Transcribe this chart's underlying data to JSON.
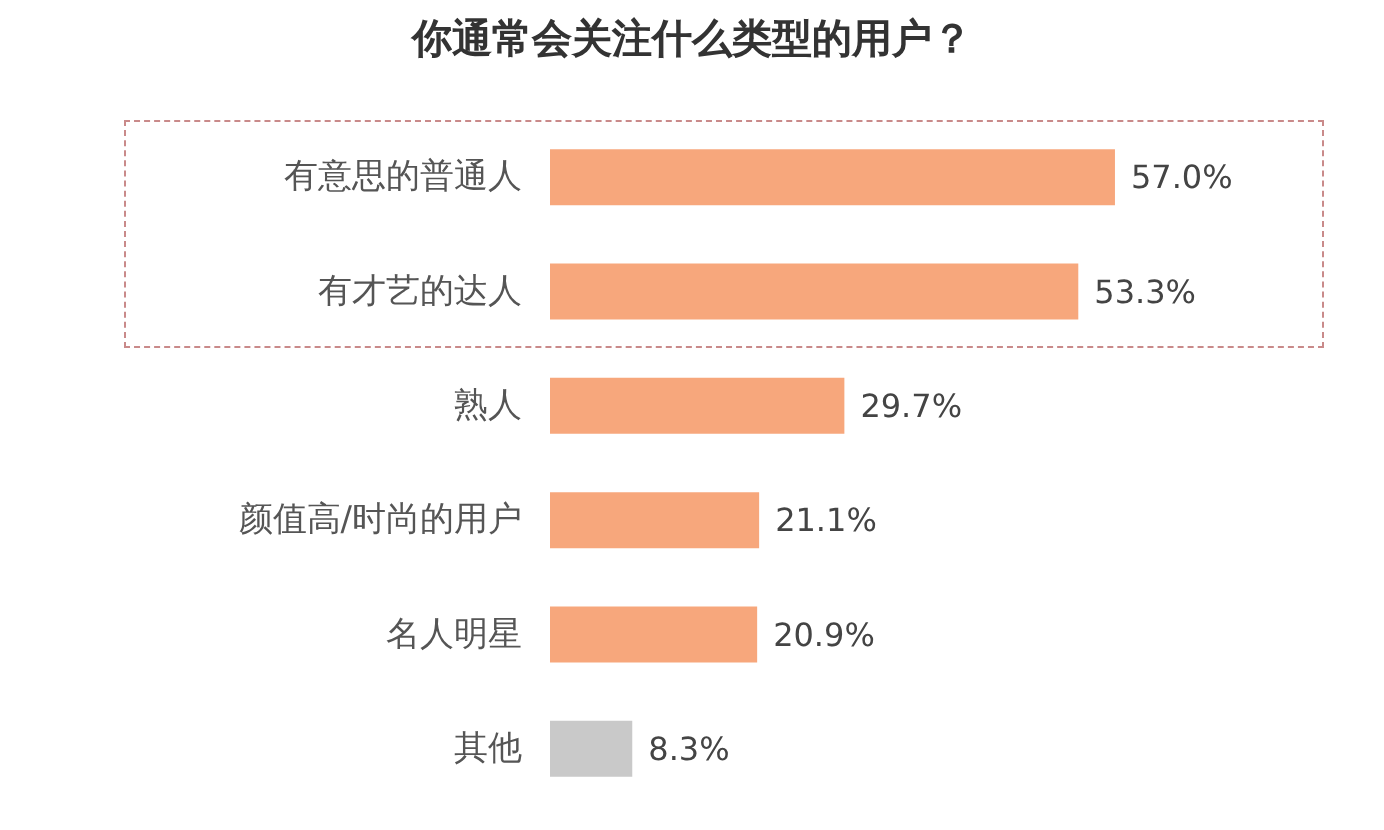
{
  "chart_data": {
    "type": "bar",
    "orientation": "horizontal",
    "title": "你通常会关注什么类型的用户？",
    "categories": [
      "有意思的普通人",
      "有才艺的达人",
      "熟人",
      "颜值高/时尚的用户",
      "名人明星",
      "其他"
    ],
    "values": [
      57.0,
      53.3,
      29.7,
      21.1,
      20.9,
      8.3
    ],
    "colors": [
      "#f7a77c",
      "#f7a77c",
      "#f7a77c",
      "#f7a77c",
      "#f7a77c",
      "#c9c9c9"
    ],
    "value_labels": [
      "57.0%",
      "53.3%",
      "29.7%",
      "21.1%",
      "20.9%",
      "8.3%"
    ]
  }
}
